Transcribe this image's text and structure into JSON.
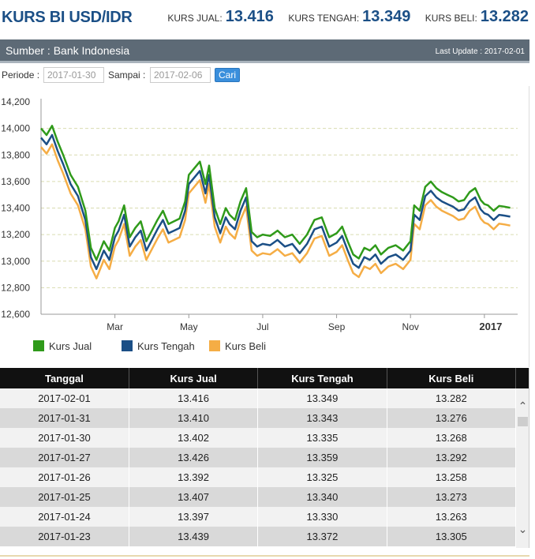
{
  "header": {
    "title": "KURS BI USD/IDR",
    "rates": [
      {
        "label": "KURS JUAL:",
        "value": "13.416"
      },
      {
        "label": "KURS TENGAH:",
        "value": "13.349"
      },
      {
        "label": "KURS BELI:",
        "value": "13.282"
      }
    ]
  },
  "source": {
    "text": "Sumber : Bank Indonesia",
    "last_update": "Last Update : 2017-02-01"
  },
  "filter": {
    "periode_label": "Periode :",
    "periode_value": "2017-01-30",
    "sampai_label": "Sampai :",
    "sampai_value": "2017-02-06",
    "button_label": "Cari"
  },
  "colors": {
    "jual": "#2f9a1a",
    "tengah": "#1b4f86",
    "beli": "#f5ad45"
  },
  "chart_data": {
    "type": "line",
    "ylim": [
      12600,
      14200
    ],
    "yticks": [
      "14,200",
      "14,000",
      "13,800",
      "13,600",
      "13,400",
      "13,200",
      "13,000",
      "12,800",
      "12,600"
    ],
    "ytick_values": [
      14200,
      14000,
      13800,
      13600,
      13400,
      13200,
      13000,
      12800,
      12600
    ],
    "xticks": [
      "Mar",
      "May",
      "Jul",
      "Sep",
      "Nov",
      "2017"
    ],
    "xtick_months": [
      2,
      4,
      6,
      8,
      10,
      12
    ],
    "grid": true,
    "legend_placement": "bottom-left",
    "x_months": [
      0.0,
      0.15,
      0.3,
      0.45,
      0.6,
      0.8,
      1.0,
      1.2,
      1.35,
      1.5,
      1.7,
      1.85,
      2.0,
      2.1,
      2.25,
      2.4,
      2.55,
      2.7,
      2.85,
      3.0,
      3.15,
      3.3,
      3.45,
      3.6,
      3.75,
      3.9,
      4.0,
      4.15,
      4.3,
      4.45,
      4.55,
      4.7,
      4.85,
      5.0,
      5.1,
      5.25,
      5.4,
      5.55,
      5.7,
      5.85,
      6.0,
      6.2,
      6.4,
      6.6,
      6.8,
      7.0,
      7.2,
      7.4,
      7.6,
      7.8,
      8.0,
      8.15,
      8.3,
      8.45,
      8.6,
      8.75,
      8.9,
      9.05,
      9.2,
      9.4,
      9.6,
      9.8,
      10.0,
      10.1,
      10.25,
      10.4,
      10.55,
      10.7,
      10.85,
      11.0,
      11.15,
      11.3,
      11.45,
      11.6,
      11.75,
      11.9,
      12.0,
      12.1,
      12.25,
      12.4,
      12.55,
      12.7
    ],
    "series": [
      {
        "name": "Kurs Jual",
        "values": [
          14000,
          13950,
          14020,
          13900,
          13800,
          13650,
          13560,
          13380,
          13100,
          13010,
          13150,
          13080,
          13250,
          13300,
          13420,
          13180,
          13250,
          13300,
          13150,
          13230,
          13310,
          13380,
          13280,
          13300,
          13320,
          13450,
          13650,
          13700,
          13750,
          13580,
          13720,
          13400,
          13280,
          13400,
          13350,
          13310,
          13450,
          13550,
          13220,
          13180,
          13200,
          13190,
          13230,
          13180,
          13200,
          13130,
          13200,
          13310,
          13330,
          13180,
          13210,
          13260,
          13150,
          13050,
          13020,
          13100,
          13080,
          13120,
          13050,
          13100,
          13120,
          13080,
          13150,
          13420,
          13380,
          13560,
          13600,
          13550,
          13520,
          13500,
          13480,
          13450,
          13460,
          13520,
          13550,
          13460,
          13430,
          13420,
          13380,
          13416,
          13410,
          13402
        ]
      },
      {
        "name": "Kurs Tengah",
        "values": [
          13930,
          13880,
          13950,
          13830,
          13730,
          13580,
          13490,
          13310,
          13030,
          12940,
          13080,
          13010,
          13180,
          13230,
          13350,
          13110,
          13180,
          13230,
          13080,
          13160,
          13240,
          13310,
          13210,
          13230,
          13250,
          13380,
          13580,
          13630,
          13680,
          13510,
          13650,
          13330,
          13210,
          13330,
          13280,
          13240,
          13380,
          13480,
          13150,
          13110,
          13130,
          13120,
          13160,
          13110,
          13130,
          13060,
          13130,
          13240,
          13260,
          13110,
          13140,
          13190,
          13080,
          12980,
          12950,
          13030,
          13010,
          13050,
          12980,
          13030,
          13050,
          13010,
          13080,
          13350,
          13310,
          13490,
          13530,
          13480,
          13450,
          13430,
          13410,
          13380,
          13390,
          13450,
          13480,
          13390,
          13360,
          13350,
          13310,
          13349,
          13343,
          13335
        ]
      },
      {
        "name": "Kurs Beli",
        "values": [
          13860,
          13810,
          13880,
          13760,
          13660,
          13510,
          13420,
          13240,
          12960,
          12870,
          13010,
          12940,
          13110,
          13160,
          13280,
          13040,
          13110,
          13160,
          13010,
          13090,
          13170,
          13240,
          13140,
          13160,
          13180,
          13310,
          13510,
          13560,
          13610,
          13440,
          13580,
          13260,
          13140,
          13260,
          13210,
          13170,
          13310,
          13410,
          13080,
          13040,
          13060,
          13050,
          13090,
          13040,
          13060,
          12990,
          13060,
          13170,
          13190,
          13040,
          13070,
          13120,
          13010,
          12910,
          12880,
          12960,
          12940,
          12980,
          12910,
          12960,
          12980,
          12940,
          13010,
          13280,
          13240,
          13420,
          13460,
          13410,
          13380,
          13360,
          13340,
          13310,
          13320,
          13380,
          13410,
          13320,
          13290,
          13280,
          13240,
          13282,
          13276,
          13268
        ]
      }
    ]
  },
  "table": {
    "headers": [
      "Tanggal",
      "Kurs Jual",
      "Kurs Tengah",
      "Kurs Beli"
    ],
    "rows": [
      [
        "2017-02-01",
        "13.416",
        "13.349",
        "13.282"
      ],
      [
        "2017-01-31",
        "13.410",
        "13.343",
        "13.276"
      ],
      [
        "2017-01-30",
        "13.402",
        "13.335",
        "13.268"
      ],
      [
        "2017-01-27",
        "13.426",
        "13.359",
        "13.292"
      ],
      [
        "2017-01-26",
        "13.392",
        "13.325",
        "13.258"
      ],
      [
        "2017-01-25",
        "13.407",
        "13.340",
        "13.273"
      ],
      [
        "2017-01-24",
        "13.397",
        "13.330",
        "13.263"
      ],
      [
        "2017-01-23",
        "13.439",
        "13.372",
        "13.305"
      ]
    ],
    "scroll_up_icon": "chevron-up-icon",
    "scroll_down_icon": "chevron-down-icon"
  }
}
